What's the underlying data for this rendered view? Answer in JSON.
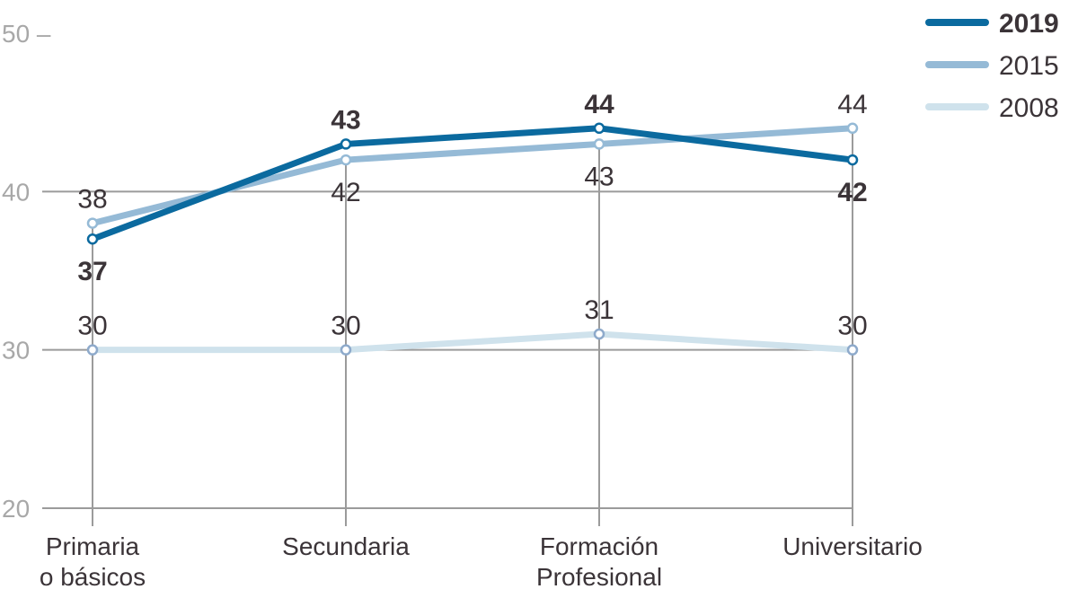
{
  "chart_data": {
    "type": "line",
    "title": "",
    "xlabel": "",
    "ylabel": "",
    "categories": [
      [
        "Primaria",
        "o básicos"
      ],
      [
        "Secundaria"
      ],
      [
        "Formación",
        "Profesional"
      ],
      [
        "Universitario"
      ]
    ],
    "ylim": [
      20,
      50
    ],
    "yticks": [
      20,
      30,
      40,
      50
    ],
    "ytick_labels": [
      "20",
      "30",
      "40",
      "50 –"
    ],
    "grid": true,
    "legend_position": "top-right",
    "series": [
      {
        "name": "2008",
        "color": "#cfe2ec",
        "marker_color": "#8eaacb",
        "bold": false,
        "values": [
          30,
          30,
          31,
          30
        ],
        "label_pos": [
          "above",
          "above",
          "above",
          "above"
        ]
      },
      {
        "name": "2015",
        "color": "#95bad6",
        "marker_color": "#95bad6",
        "bold": false,
        "values": [
          38,
          42,
          43,
          44
        ],
        "label_pos": [
          "above",
          "below",
          "below",
          "above"
        ]
      },
      {
        "name": "2019",
        "color": "#0b6a9f",
        "marker_color": "#0b6a9f",
        "bold": true,
        "values": [
          37,
          43,
          44,
          42
        ],
        "label_pos": [
          "below",
          "above",
          "above",
          "below"
        ]
      }
    ],
    "legend": [
      {
        "name": "2019",
        "color": "#0b6a9f",
        "bold": true
      },
      {
        "name": "2015",
        "color": "#95bad6",
        "bold": false
      },
      {
        "name": "2008",
        "color": "#cfe2ec",
        "bold": false
      }
    ]
  }
}
